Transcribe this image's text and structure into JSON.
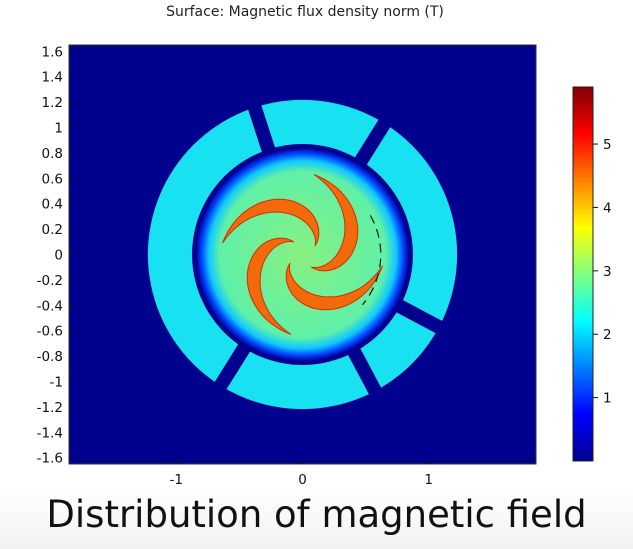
{
  "chart_data": {
    "type": "heatmap",
    "title": "Surface: Magnetic flux density norm (T)",
    "xlabel": "",
    "ylabel": "",
    "x_ticks": [
      "-1",
      "0",
      "1"
    ],
    "y_ticks": [
      "1.6",
      "1.4",
      "1.2",
      "1",
      "0.8",
      "0.6",
      "0.4",
      "0.2",
      "0",
      "-0.2",
      "-0.4",
      "-0.6",
      "-0.8",
      "-1",
      "-1.2",
      "-1.4",
      "-1.6"
    ],
    "xlim": [
      -1.85,
      1.85
    ],
    "ylim": [
      -1.65,
      1.65
    ],
    "colorbar": {
      "ticks": [
        "5",
        "4",
        "3",
        "2",
        "1"
      ],
      "range": [
        0,
        5.9
      ],
      "colormap": "jet"
    },
    "field_levels": {
      "background_air": 0.0,
      "stator_segments": 2.1,
      "airgap_ring": 0.3,
      "rotor_core": 2.6,
      "spiral_arms": 4.9
    },
    "colors": {
      "background": "#00008f",
      "stator": "#18e2f2",
      "rotor": "#7df285",
      "spiral": "#f26a0c"
    }
  },
  "caption": "Distribution of magnetic field"
}
